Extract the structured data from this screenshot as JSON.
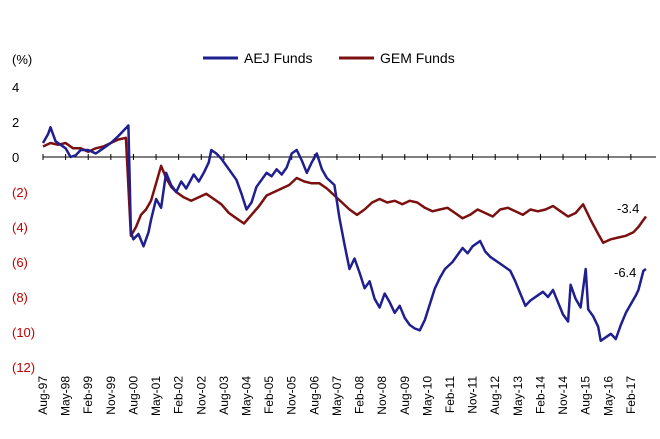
{
  "chart_data": {
    "type": "line",
    "ylabel": "(%)",
    "ylim": [
      -12,
      4
    ],
    "yticks": [
      {
        "value": 4,
        "label": "4"
      },
      {
        "value": 2,
        "label": "2"
      },
      {
        "value": 0,
        "label": "0"
      },
      {
        "value": -2,
        "label": "(2)"
      },
      {
        "value": -4,
        "label": "(4)"
      },
      {
        "value": -6,
        "label": "(6)"
      },
      {
        "value": -8,
        "label": "(8)"
      },
      {
        "value": -10,
        "label": "(10)"
      },
      {
        "value": -12,
        "label": "(12)"
      }
    ],
    "xlim": [
      "1997-08",
      "2017-12"
    ],
    "xticks": [
      {
        "date": "1997-08",
        "label": "Aug-97"
      },
      {
        "date": "1998-05",
        "label": "May-98"
      },
      {
        "date": "1999-02",
        "label": "Feb-99"
      },
      {
        "date": "1999-11",
        "label": "Nov-99"
      },
      {
        "date": "2000-08",
        "label": "Aug-00"
      },
      {
        "date": "2001-05",
        "label": "May-01"
      },
      {
        "date": "2002-02",
        "label": "Feb-02"
      },
      {
        "date": "2002-11",
        "label": "Nov-02"
      },
      {
        "date": "2003-08",
        "label": "Aug-03"
      },
      {
        "date": "2004-05",
        "label": "May-04"
      },
      {
        "date": "2005-02",
        "label": "Feb-05"
      },
      {
        "date": "2005-11",
        "label": "Nov-05"
      },
      {
        "date": "2006-08",
        "label": "Aug-06"
      },
      {
        "date": "2007-05",
        "label": "May-07"
      },
      {
        "date": "2008-02",
        "label": "Feb-08"
      },
      {
        "date": "2008-11",
        "label": "Nov-08"
      },
      {
        "date": "2009-08",
        "label": "Aug-09"
      },
      {
        "date": "2010-05",
        "label": "May-10"
      },
      {
        "date": "2011-02",
        "label": "Feb-11"
      },
      {
        "date": "2011-11",
        "label": "Nov-11"
      },
      {
        "date": "2012-08",
        "label": "Aug-12"
      },
      {
        "date": "2013-05",
        "label": "May-13"
      },
      {
        "date": "2014-02",
        "label": "Feb-14"
      },
      {
        "date": "2014-11",
        "label": "Nov-14"
      },
      {
        "date": "2015-08",
        "label": "Aug-15"
      },
      {
        "date": "2016-05",
        "label": "May-16"
      },
      {
        "date": "2017-02",
        "label": "Feb-17"
      }
    ],
    "legend": "top",
    "grid": false,
    "series": [
      {
        "name": "AEJ Funds",
        "color": "#1f1f8f",
        "end_label": "-6.4",
        "points": [
          [
            "1997-08",
            0.8
          ],
          [
            "1997-10",
            1.3
          ],
          [
            "1997-11",
            1.7
          ],
          [
            "1998-01",
            0.9
          ],
          [
            "1998-03",
            0.7
          ],
          [
            "1998-05",
            0.5
          ],
          [
            "1998-07",
            0.0
          ],
          [
            "1998-09",
            0.1
          ],
          [
            "1998-11",
            0.4
          ],
          [
            "1999-02",
            0.4
          ],
          [
            "1999-05",
            0.2
          ],
          [
            "1999-08",
            0.5
          ],
          [
            "1999-11",
            0.8
          ],
          [
            "2000-02",
            1.2
          ],
          [
            "2000-04",
            1.5
          ],
          [
            "2000-06",
            1.8
          ],
          [
            "2000-07",
            -4.3
          ],
          [
            "2000-08",
            -4.7
          ],
          [
            "2000-10",
            -4.4
          ],
          [
            "2000-12",
            -5.1
          ],
          [
            "2001-02",
            -4.3
          ],
          [
            "2001-03",
            -3.6
          ],
          [
            "2001-05",
            -2.4
          ],
          [
            "2001-07",
            -2.9
          ],
          [
            "2001-09",
            -0.9
          ],
          [
            "2001-11",
            -1.6
          ],
          [
            "2002-01",
            -2.0
          ],
          [
            "2002-03",
            -1.4
          ],
          [
            "2002-05",
            -1.8
          ],
          [
            "2002-08",
            -1.0
          ],
          [
            "2002-10",
            -1.4
          ],
          [
            "2002-12",
            -0.9
          ],
          [
            "2003-02",
            -0.3
          ],
          [
            "2003-03",
            0.4
          ],
          [
            "2003-05",
            0.2
          ],
          [
            "2003-07",
            -0.1
          ],
          [
            "2003-09",
            -0.5
          ],
          [
            "2003-11",
            -0.9
          ],
          [
            "2004-01",
            -1.3
          ],
          [
            "2004-03",
            -2.1
          ],
          [
            "2004-05",
            -3.0
          ],
          [
            "2004-07",
            -2.6
          ],
          [
            "2004-09",
            -1.7
          ],
          [
            "2004-11",
            -1.3
          ],
          [
            "2005-01",
            -0.9
          ],
          [
            "2005-03",
            -1.1
          ],
          [
            "2005-05",
            -0.7
          ],
          [
            "2005-07",
            -1.0
          ],
          [
            "2005-09",
            -0.6
          ],
          [
            "2005-11",
            0.2
          ],
          [
            "2006-01",
            0.4
          ],
          [
            "2006-03",
            -0.2
          ],
          [
            "2006-05",
            -0.9
          ],
          [
            "2006-07",
            -0.3
          ],
          [
            "2006-09",
            0.2
          ],
          [
            "2006-11",
            -0.7
          ],
          [
            "2007-01",
            -1.2
          ],
          [
            "2007-04",
            -1.6
          ],
          [
            "2007-06",
            -3.5
          ],
          [
            "2007-08",
            -5.0
          ],
          [
            "2007-10",
            -6.4
          ],
          [
            "2007-12",
            -5.8
          ],
          [
            "2008-02",
            -6.6
          ],
          [
            "2008-04",
            -7.5
          ],
          [
            "2008-06",
            -7.1
          ],
          [
            "2008-08",
            -8.1
          ],
          [
            "2008-10",
            -8.6
          ],
          [
            "2008-12",
            -7.8
          ],
          [
            "2009-02",
            -8.3
          ],
          [
            "2009-04",
            -8.9
          ],
          [
            "2009-06",
            -8.5
          ],
          [
            "2009-08",
            -9.2
          ],
          [
            "2009-10",
            -9.6
          ],
          [
            "2009-12",
            -9.8
          ],
          [
            "2010-02",
            -9.9
          ],
          [
            "2010-04",
            -9.3
          ],
          [
            "2010-06",
            -8.4
          ],
          [
            "2010-08",
            -7.5
          ],
          [
            "2010-10",
            -6.9
          ],
          [
            "2010-12",
            -6.4
          ],
          [
            "2011-03",
            -6.0
          ],
          [
            "2011-05",
            -5.6
          ],
          [
            "2011-07",
            -5.2
          ],
          [
            "2011-09",
            -5.5
          ],
          [
            "2011-11",
            -5.1
          ],
          [
            "2012-02",
            -4.8
          ],
          [
            "2012-04",
            -5.4
          ],
          [
            "2012-06",
            -5.7
          ],
          [
            "2012-09",
            -6.0
          ],
          [
            "2012-11",
            -6.2
          ],
          [
            "2013-02",
            -6.5
          ],
          [
            "2013-04",
            -7.1
          ],
          [
            "2013-06",
            -7.8
          ],
          [
            "2013-08",
            -8.5
          ],
          [
            "2013-10",
            -8.2
          ],
          [
            "2014-01",
            -7.9
          ],
          [
            "2014-03",
            -7.7
          ],
          [
            "2014-05",
            -8.0
          ],
          [
            "2014-07",
            -7.6
          ],
          [
            "2014-09",
            -8.3
          ],
          [
            "2014-11",
            -9.0
          ],
          [
            "2015-01",
            -9.4
          ],
          [
            "2015-02",
            -7.3
          ],
          [
            "2015-04",
            -8.1
          ],
          [
            "2015-06",
            -8.6
          ],
          [
            "2015-08",
            -6.4
          ],
          [
            "2015-09",
            -8.7
          ],
          [
            "2015-11",
            -9.1
          ],
          [
            "2016-01",
            -9.7
          ],
          [
            "2016-02",
            -10.5
          ],
          [
            "2016-04",
            -10.3
          ],
          [
            "2016-06",
            -10.1
          ],
          [
            "2016-08",
            -10.4
          ],
          [
            "2016-10",
            -9.6
          ],
          [
            "2016-12",
            -8.9
          ],
          [
            "2017-02",
            -8.4
          ],
          [
            "2017-04",
            -7.9
          ],
          [
            "2017-05",
            -7.6
          ],
          [
            "2017-07",
            -6.5
          ],
          [
            "2017-08",
            -6.4
          ]
        ]
      },
      {
        "name": "GEM Funds",
        "color": "#7b1010",
        "end_label": "-3.4",
        "points": [
          [
            "1997-08",
            0.6
          ],
          [
            "1997-11",
            0.8
          ],
          [
            "1998-02",
            0.7
          ],
          [
            "1998-05",
            0.8
          ],
          [
            "1998-08",
            0.5
          ],
          [
            "1998-11",
            0.5
          ],
          [
            "1999-02",
            0.3
          ],
          [
            "1999-05",
            0.5
          ],
          [
            "1999-08",
            0.6
          ],
          [
            "1999-11",
            0.8
          ],
          [
            "2000-02",
            1.0
          ],
          [
            "2000-05",
            1.1
          ],
          [
            "2000-07",
            -4.5
          ],
          [
            "2000-09",
            -4.0
          ],
          [
            "2000-11",
            -3.3
          ],
          [
            "2001-01",
            -3.0
          ],
          [
            "2001-03",
            -2.5
          ],
          [
            "2001-05",
            -1.5
          ],
          [
            "2001-07",
            -0.5
          ],
          [
            "2001-09",
            -1.2
          ],
          [
            "2001-11",
            -1.7
          ],
          [
            "2002-01",
            -2.0
          ],
          [
            "2002-04",
            -2.3
          ],
          [
            "2002-07",
            -2.5
          ],
          [
            "2002-10",
            -2.3
          ],
          [
            "2003-01",
            -2.1
          ],
          [
            "2003-04",
            -2.4
          ],
          [
            "2003-07",
            -2.7
          ],
          [
            "2003-10",
            -3.2
          ],
          [
            "2004-01",
            -3.5
          ],
          [
            "2004-04",
            -3.8
          ],
          [
            "2004-07",
            -3.3
          ],
          [
            "2004-10",
            -2.8
          ],
          [
            "2005-01",
            -2.2
          ],
          [
            "2005-04",
            -2.0
          ],
          [
            "2005-07",
            -1.8
          ],
          [
            "2005-10",
            -1.6
          ],
          [
            "2006-01",
            -1.2
          ],
          [
            "2006-04",
            -1.4
          ],
          [
            "2006-07",
            -1.5
          ],
          [
            "2006-10",
            -1.5
          ],
          [
            "2007-01",
            -1.8
          ],
          [
            "2007-04",
            -2.2
          ],
          [
            "2007-07",
            -2.6
          ],
          [
            "2007-10",
            -3.0
          ],
          [
            "2008-01",
            -3.3
          ],
          [
            "2008-04",
            -3.0
          ],
          [
            "2008-07",
            -2.6
          ],
          [
            "2008-10",
            -2.4
          ],
          [
            "2009-01",
            -2.6
          ],
          [
            "2009-04",
            -2.5
          ],
          [
            "2009-07",
            -2.7
          ],
          [
            "2009-10",
            -2.5
          ],
          [
            "2010-01",
            -2.6
          ],
          [
            "2010-04",
            -2.9
          ],
          [
            "2010-07",
            -3.1
          ],
          [
            "2010-10",
            -3.0
          ],
          [
            "2011-01",
            -2.9
          ],
          [
            "2011-04",
            -3.2
          ],
          [
            "2011-07",
            -3.5
          ],
          [
            "2011-10",
            -3.3
          ],
          [
            "2012-01",
            -3.0
          ],
          [
            "2012-04",
            -3.2
          ],
          [
            "2012-07",
            -3.4
          ],
          [
            "2012-10",
            -3.0
          ],
          [
            "2013-01",
            -2.9
          ],
          [
            "2013-04",
            -3.1
          ],
          [
            "2013-07",
            -3.3
          ],
          [
            "2013-10",
            -3.0
          ],
          [
            "2014-01",
            -3.1
          ],
          [
            "2014-04",
            -3.0
          ],
          [
            "2014-07",
            -2.8
          ],
          [
            "2014-10",
            -3.1
          ],
          [
            "2015-01",
            -3.4
          ],
          [
            "2015-04",
            -3.2
          ],
          [
            "2015-07",
            -2.7
          ],
          [
            "2015-10",
            -3.6
          ],
          [
            "2016-01",
            -4.4
          ],
          [
            "2016-03",
            -4.9
          ],
          [
            "2016-06",
            -4.7
          ],
          [
            "2016-09",
            -4.6
          ],
          [
            "2016-12",
            -4.5
          ],
          [
            "2017-03",
            -4.3
          ],
          [
            "2017-05",
            -4.0
          ],
          [
            "2017-07",
            -3.6
          ],
          [
            "2017-08",
            -3.4
          ]
        ]
      }
    ]
  }
}
